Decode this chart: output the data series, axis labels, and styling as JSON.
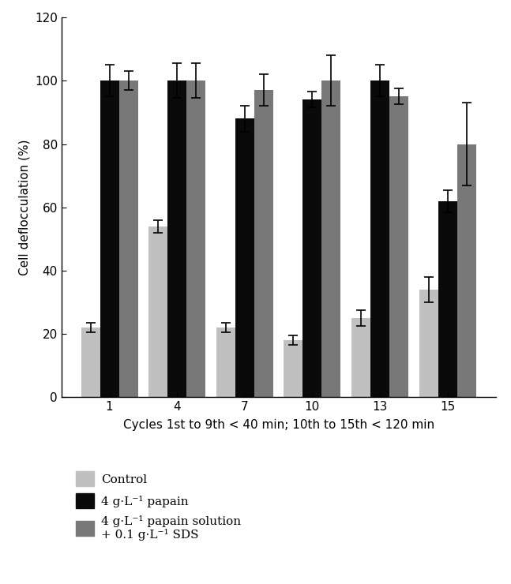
{
  "categories": [
    "1",
    "4",
    "7",
    "10",
    "13",
    "15"
  ],
  "control_values": [
    22,
    54,
    22,
    18,
    25,
    34
  ],
  "control_errors": [
    1.5,
    2.0,
    1.5,
    1.5,
    2.5,
    4.0
  ],
  "papain_values": [
    100,
    100,
    88,
    94,
    100,
    62
  ],
  "papain_errors": [
    5.0,
    5.5,
    4.0,
    2.5,
    5.0,
    3.5
  ],
  "papain_sds_values": [
    100,
    100,
    97,
    100,
    95,
    80
  ],
  "papain_sds_errors": [
    3.0,
    5.5,
    5.0,
    8.0,
    2.5,
    13.0
  ],
  "bar_width": 0.28,
  "color_control": "#c0c0c0",
  "color_papain": "#0a0a0a",
  "color_papain_sds": "#787878",
  "ylabel": "Cell deflocculation (%)",
  "xlabel": "Cycles 1st to 9th < 40 min; 10th to 15th < 120 min",
  "ylim": [
    0,
    120
  ],
  "yticks": [
    0,
    20,
    40,
    60,
    80,
    100,
    120
  ],
  "legend_label_control": "Control",
  "legend_label_papain": "4 g·L⁻¹ papain",
  "legend_label_sds_line1": "4 g·L⁻¹ papain solution",
  "legend_label_sds_line2": "+ 0.1 g·L⁻¹ SDS",
  "axis_fontsize": 11,
  "tick_fontsize": 11,
  "legend_fontsize": 11
}
